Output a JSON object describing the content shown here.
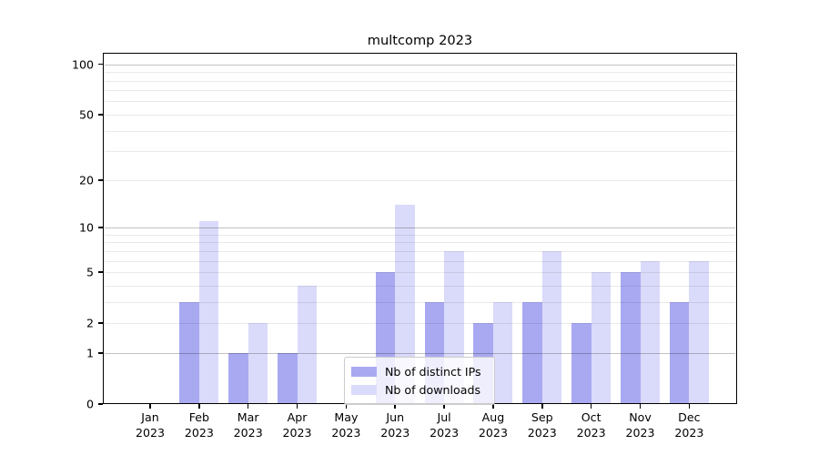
{
  "chart_data": {
    "type": "bar",
    "title": "multcomp 2023",
    "categories": [
      "Jan 2023",
      "Feb 2023",
      "Mar 2023",
      "Apr 2023",
      "May 2023",
      "Jun 2023",
      "Jul 2023",
      "Aug 2023",
      "Sep 2023",
      "Oct 2023",
      "Nov 2023",
      "Dec 2023"
    ],
    "series": [
      {
        "name": "Nb of distinct IPs",
        "color": "#a9a9f2",
        "values": [
          0,
          3,
          1,
          1,
          0,
          5,
          3,
          2,
          3,
          2,
          5,
          3
        ]
      },
      {
        "name": "Nb of downloads",
        "color": "#dadafa",
        "values": [
          0,
          11,
          2,
          4,
          0,
          14,
          7,
          3,
          7,
          5,
          6,
          6
        ]
      }
    ],
    "xlabel": "",
    "ylabel": "",
    "y_axis": {
      "scale": "log1p",
      "range": [
        0,
        100
      ],
      "tick_values": [
        0,
        1,
        2,
        5,
        10,
        20,
        50,
        100
      ],
      "tick_labels": [
        "0",
        "1",
        "2",
        "5",
        "10",
        "20",
        "50",
        "100"
      ],
      "major_gridline_values": [
        1,
        10,
        100
      ],
      "minor_gridline_values": [
        2,
        3,
        4,
        5,
        6,
        7,
        8,
        9,
        20,
        30,
        40,
        50,
        60,
        70,
        80,
        90
      ]
    },
    "grid": true,
    "legend_position": "lower center",
    "legend_entries": [
      "Nb of distinct IPs",
      "Nb of downloads"
    ]
  },
  "colors": {
    "series_dark": "#a9a9f2",
    "series_light": "#dadafa",
    "major_grid": "rgba(0,0,0,0.24)",
    "minor_grid": "rgba(0,0,0,0.085)",
    "axis": "#000000",
    "background": "#ffffff"
  }
}
